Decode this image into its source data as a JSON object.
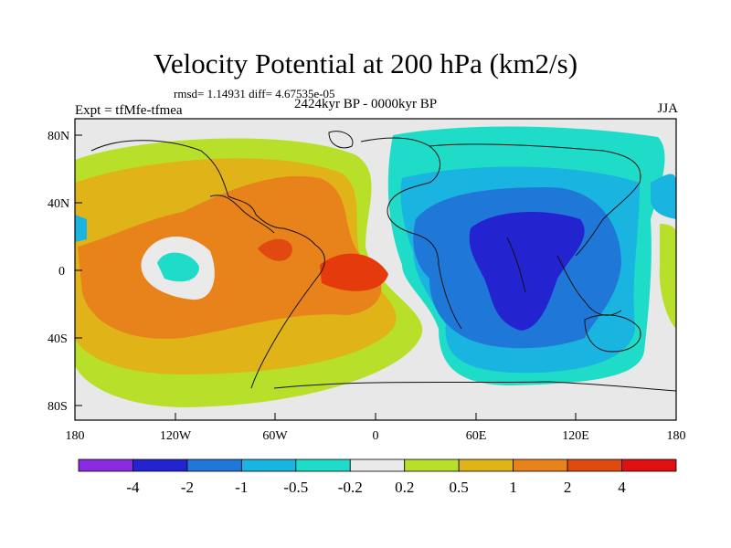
{
  "title": "Velocity Potential at 200 hPa (km2/s)",
  "stats": "rmsd= 1.14931 diff= 4.67535e-05",
  "experiment": "Expt = tfMfe-tfmea",
  "period": "2424kyr BP - 0000kyr BP",
  "season": "JJA",
  "map": {
    "lat_ticks": [
      "80N",
      "40N",
      "0",
      "40S",
      "80S"
    ],
    "lon_ticks": [
      "180",
      "120W",
      "60W",
      "0",
      "60E",
      "120E",
      "180"
    ],
    "background_color": "#e8e8e8"
  },
  "colorbar": {
    "colors": [
      "#8a2be2",
      "#2323d0",
      "#1f78d8",
      "#1ab4e0",
      "#1edcc8",
      "#eaeaea",
      "#b8e02a",
      "#e0b418",
      "#e8821a",
      "#e04a10",
      "#e01010"
    ],
    "labels": [
      "-4",
      "-2",
      "-1",
      "-0.5",
      "-0.2",
      "0.2",
      "0.5",
      "1",
      "2",
      "4"
    ]
  }
}
